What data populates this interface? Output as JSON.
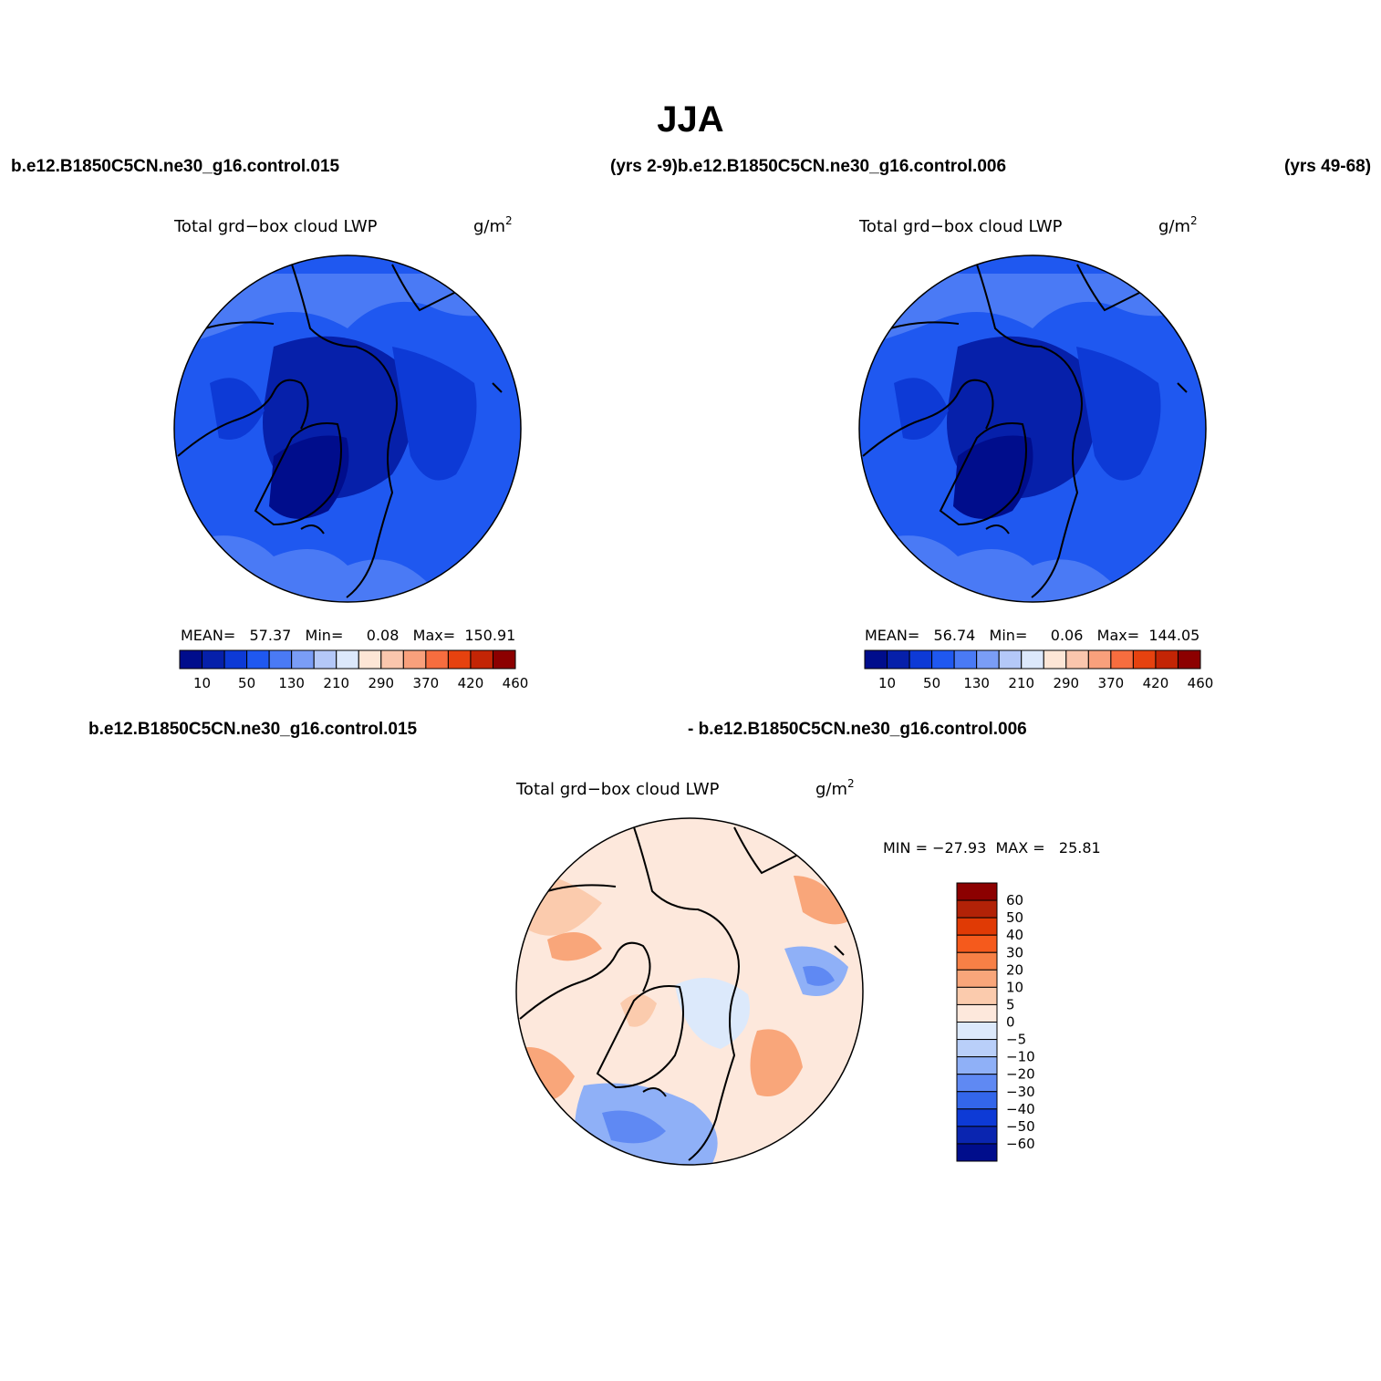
{
  "figure": {
    "title": "JJA",
    "header_left": "b.e12.B1850C5CN.ne30_g16.control.015",
    "header_mid": "(yrs 2-9)b.e12.B1850C5CN.ne30_g16.control.006",
    "header_right": "(yrs 49-68)",
    "diff_left": "b.e12.B1850C5CN.ne30_g16.control.015",
    "diff_right": "- b.e12.B1850C5CN.ne30_g16.control.006"
  },
  "panels": {
    "left": {
      "variable": "Total grd−box cloud LWP",
      "units": "g/m",
      "units_sup": "2",
      "stats": "MEAN=   57.37   Min=     0.08   Max=  150.91"
    },
    "right": {
      "variable": "Total grd−box cloud LWP",
      "units": "g/m",
      "units_sup": "2",
      "stats": "MEAN=   56.74   Min=     0.06   Max=  144.05"
    },
    "diff": {
      "variable": "Total grd−box cloud LWP",
      "units": "g/m",
      "units_sup": "2",
      "stats": "MIN = −27.93  MAX =   25.81"
    }
  },
  "colorbar_main": {
    "colors": [
      "#000d8c",
      "#0620aa",
      "#0d3ad6",
      "#1f58f0",
      "#4a7af5",
      "#7a9df6",
      "#b4c8f8",
      "#dce8fb",
      "#fde6d6",
      "#fac6ad",
      "#f9a07c",
      "#f76d3f",
      "#e6420f",
      "#c32505",
      "#8c0000"
    ],
    "labels": [
      "10",
      "50",
      "130",
      "210",
      "290",
      "370",
      "420",
      "460"
    ]
  },
  "colorbar_diff": {
    "colors": [
      "#8c0000",
      "#b22207",
      "#e03a05",
      "#f55a1c",
      "#f78046",
      "#f9a67a",
      "#fbcbad",
      "#fde8dc",
      "#dce9fb",
      "#b9cff9",
      "#8fb0f7",
      "#5f89f3",
      "#3366ea",
      "#0d3ad6",
      "#0a25b0",
      "#000d8c"
    ],
    "labels": [
      "60",
      "50",
      "40",
      "30",
      "20",
      "10",
      "5",
      "0",
      "−5",
      "−10",
      "−20",
      "−30",
      "−40",
      "−50",
      "−60"
    ]
  }
}
